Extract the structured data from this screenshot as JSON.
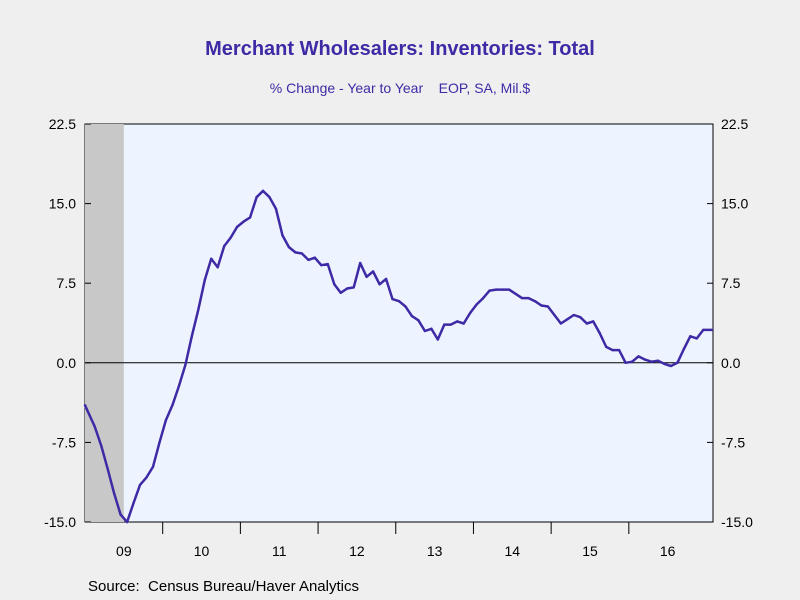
{
  "chart_data": {
    "type": "line",
    "title": "Merchant Wholesalers: Inventories: Total",
    "subtitle": "% Change - Year to Year    EOP, SA, Mil.$",
    "source": "Source:  Census Bureau/Haver Analytics",
    "xlabel": "",
    "ylabel": "",
    "ylim": [
      -15.0,
      22.5
    ],
    "yticks": [
      "-15.0",
      "-7.5",
      "0.0",
      "7.5",
      "15.0",
      "22.5"
    ],
    "xticks": [
      "09",
      "10",
      "11",
      "12",
      "13",
      "14",
      "15",
      "16"
    ],
    "x_start": "2009-01",
    "recession_shading": {
      "from": "2009-01",
      "to": "2009-06"
    },
    "colors": {
      "line": "#3f2aa6",
      "plot_bg": "#eef4ff",
      "page_bg": "#efefef",
      "recession": "#c8c8c8",
      "title": "#3f2aa6"
    },
    "series": [
      {
        "values": [
          -4.0,
          -6.0,
          -7.8,
          -10.0,
          -12.3,
          -14.3,
          -15.0,
          -13.2,
          -11.5,
          -10.8,
          -9.8,
          -7.5,
          -5.4,
          -4.0,
          -2.2,
          -0.2,
          2.5,
          5.0,
          7.8,
          9.8,
          9.0,
          11.0,
          11.8,
          12.8,
          13.3,
          13.7,
          15.6,
          16.2,
          15.6,
          14.5,
          12.0,
          10.9,
          10.4,
          10.3,
          9.7,
          9.9,
          9.2,
          9.3,
          7.4,
          6.6,
          7.0,
          7.1,
          9.4,
          8.1,
          8.6,
          7.4,
          7.9,
          6.0,
          5.8,
          5.3,
          4.4,
          4.0,
          3.0,
          3.2,
          2.2,
          3.6,
          3.6,
          3.9,
          3.7,
          4.7,
          5.5,
          6.1,
          6.8,
          6.9,
          6.9,
          6.9,
          6.5,
          6.1,
          6.1,
          5.8,
          5.4,
          5.3,
          4.5,
          3.7,
          4.1,
          4.5,
          4.3,
          3.7,
          3.9,
          2.8,
          1.5,
          1.2,
          1.2,
          0.0,
          0.1,
          0.6,
          0.3,
          0.1,
          0.2,
          -0.1,
          -0.3,
          0.0,
          1.3,
          2.5,
          2.3,
          3.1,
          3.1
        ]
      }
    ]
  }
}
